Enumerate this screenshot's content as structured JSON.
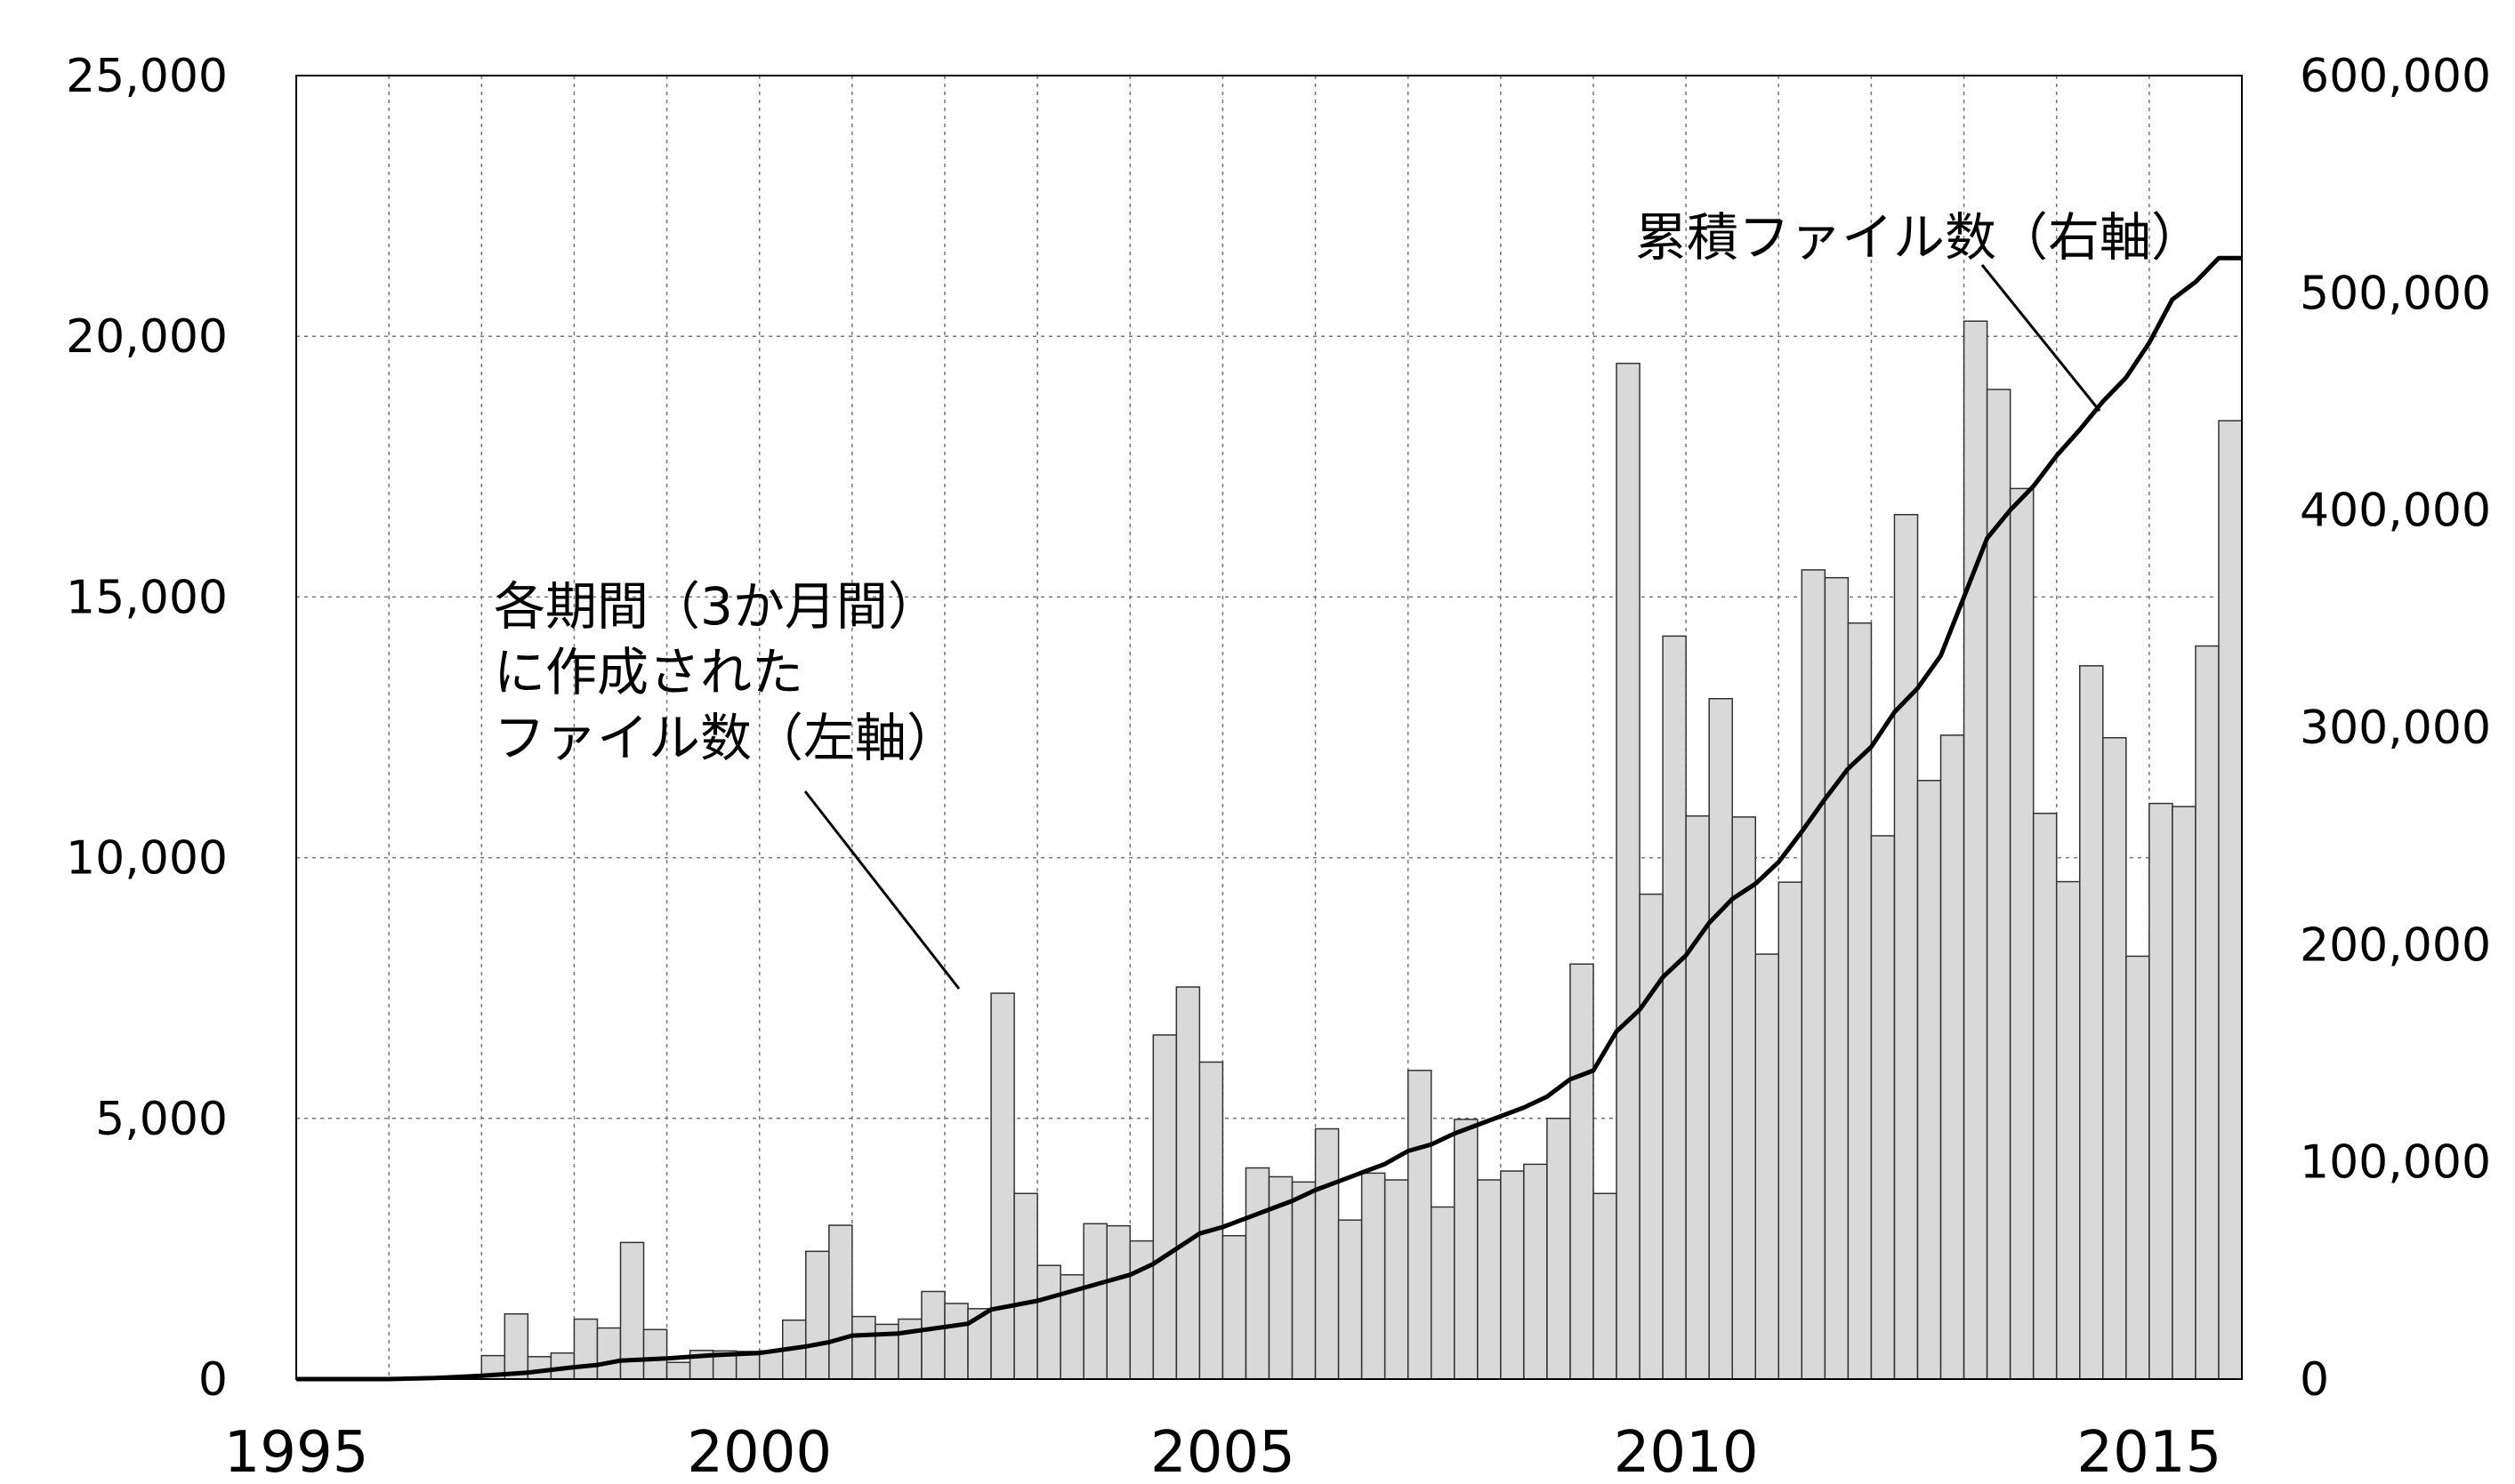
{
  "chart_data": {
    "type": "bar",
    "title": "",
    "xlabel": "",
    "ylabel": "",
    "xlim": [
      1995,
      2016
    ],
    "x_ticks": [
      "1995",
      "2000",
      "2005",
      "2010",
      "2015"
    ],
    "left_axis": {
      "ylim": [
        0,
        25000
      ],
      "ticks": [
        "0",
        "5,000",
        "10,000",
        "15,000",
        "20,000",
        "25,000"
      ]
    },
    "right_axis": {
      "ylim": [
        0,
        600000
      ],
      "ticks": [
        "0",
        "100,000",
        "200,000",
        "300,000",
        "400,000",
        "500,000",
        "600,000"
      ]
    },
    "grid": {
      "vertical": "dotted",
      "horizontal": "dotted"
    },
    "quarters": [
      "1995 Q1",
      "1995 Q2",
      "1995 Q3",
      "1995 Q4",
      "1996 Q1",
      "1996 Q2",
      "1996 Q3",
      "1996 Q4",
      "1997 Q1",
      "1997 Q2",
      "1997 Q3",
      "1997 Q4",
      "1998 Q1",
      "1998 Q2",
      "1998 Q3",
      "1998 Q4",
      "1999 Q1",
      "1999 Q2",
      "1999 Q3",
      "1999 Q4",
      "2000 Q1",
      "2000 Q2",
      "2000 Q3",
      "2000 Q4",
      "2001 Q1",
      "2001 Q2",
      "2001 Q3",
      "2001 Q4",
      "2002 Q1",
      "2002 Q2",
      "2002 Q3",
      "2002 Q4",
      "2003 Q1",
      "2003 Q2",
      "2003 Q3",
      "2003 Q4",
      "2004 Q1",
      "2004 Q2",
      "2004 Q3",
      "2004 Q4",
      "2005 Q1",
      "2005 Q2",
      "2005 Q3",
      "2005 Q4",
      "2006 Q1",
      "2006 Q2",
      "2006 Q3",
      "2006 Q4",
      "2007 Q1",
      "2007 Q2",
      "2007 Q3",
      "2007 Q4",
      "2008 Q1",
      "2008 Q2",
      "2008 Q3",
      "2008 Q4",
      "2009 Q1",
      "2009 Q2",
      "2009 Q3",
      "2009 Q4",
      "2010 Q1",
      "2010 Q2",
      "2010 Q3",
      "2010 Q4",
      "2011 Q1",
      "2011 Q2",
      "2011 Q3",
      "2011 Q4",
      "2012 Q1",
      "2012 Q2",
      "2012 Q3",
      "2012 Q4",
      "2013 Q1",
      "2013 Q2",
      "2013 Q3",
      "2013 Q4",
      "2014 Q1",
      "2014 Q2",
      "2014 Q3",
      "2014 Q4",
      "2015 Q1",
      "2015 Q2",
      "2015 Q3",
      "2015 Q4"
    ],
    "series": [
      {
        "name": "各期間（3か月間）に作成されたファイル数（左軸）",
        "type": "bar",
        "axis": "left",
        "color": "#d9d9d9",
        "values": [
          0,
          0,
          0,
          0,
          0,
          0,
          0,
          0,
          450,
          1250,
          430,
          500,
          1150,
          980,
          2620,
          950,
          320,
          550,
          540,
          530,
          540,
          1130,
          2450,
          2950,
          1200,
          1050,
          1150,
          1680,
          1450,
          1350,
          7400,
          3560,
          2180,
          2000,
          2980,
          2940,
          2650,
          6600,
          7520,
          6080,
          2750,
          4050,
          3880,
          3780,
          4800,
          3050,
          3950,
          3820,
          5920,
          3300,
          4980,
          3820,
          3990,
          4120,
          5000,
          7960,
          3560,
          19480,
          9300,
          14250,
          10800,
          13050,
          10780,
          8150,
          9530,
          15520,
          15370,
          14500,
          10420,
          16580,
          11480,
          12350,
          20290,
          18980,
          17080,
          10850,
          9540,
          13680,
          12300,
          8110,
          11040,
          10980,
          14060,
          18380
        ]
      },
      {
        "name": "累積ファイル数（右軸）",
        "type": "line",
        "axis": "right",
        "color": "#000000",
        "x": [
          1995,
          1996,
          1996.5,
          1997,
          1997.5,
          1998,
          1998.25,
          1998.5,
          1999,
          1999.5,
          2000,
          2000.25,
          2000.5,
          2000.75,
          2001,
          2001.5,
          2001.75,
          2002,
          2002.25,
          2002.5,
          2003,
          2003.5,
          2003.75,
          2004,
          2004.25,
          2004.5,
          2004.75,
          2005,
          2005.25,
          2005.5,
          2005.75,
          2006,
          2006.25,
          2006.5,
          2006.75,
          2007,
          2007.25,
          2007.5,
          2007.75,
          2008,
          2008.25,
          2008.5,
          2008.75,
          2009,
          2009.25,
          2009.5,
          2009.75,
          2010,
          2010.25,
          2010.5,
          2010.75,
          2011,
          2011.25,
          2011.5,
          2011.75,
          2012,
          2012.25,
          2012.5,
          2012.75,
          2013,
          2013.25,
          2013.5,
          2013.75,
          2014,
          2014.25,
          2014.5,
          2014.75,
          2015,
          2015.25,
          2015.5,
          2015.75,
          2016
        ],
        "values": [
          0,
          0,
          500,
          1500,
          3000,
          5500,
          6500,
          8500,
          9500,
          11000,
          12000,
          13500,
          15000,
          17000,
          20000,
          21000,
          22500,
          24000,
          25500,
          32000,
          36000,
          42000,
          45000,
          48000,
          53000,
          60000,
          67000,
          70000,
          74000,
          78000,
          82000,
          87000,
          91000,
          95000,
          99000,
          105000,
          108000,
          113000,
          117000,
          121000,
          125000,
          130000,
          138000,
          142000,
          160000,
          170000,
          185000,
          195000,
          210000,
          221000,
          228000,
          238000,
          252000,
          267000,
          281000,
          291000,
          307000,
          318000,
          333000,
          360000,
          387000,
          400000,
          411000,
          425000,
          437000,
          450000,
          461000,
          477000,
          497000,
          505000,
          516000,
          516000
        ]
      }
    ],
    "annotations": [
      {
        "lines": [
          "各期間（3か月間）",
          "に作成された",
          "ファイル数（左軸）"
        ],
        "target": "bars"
      },
      {
        "lines": [
          "累積ファイル数（右軸）"
        ],
        "target": "line"
      }
    ]
  }
}
